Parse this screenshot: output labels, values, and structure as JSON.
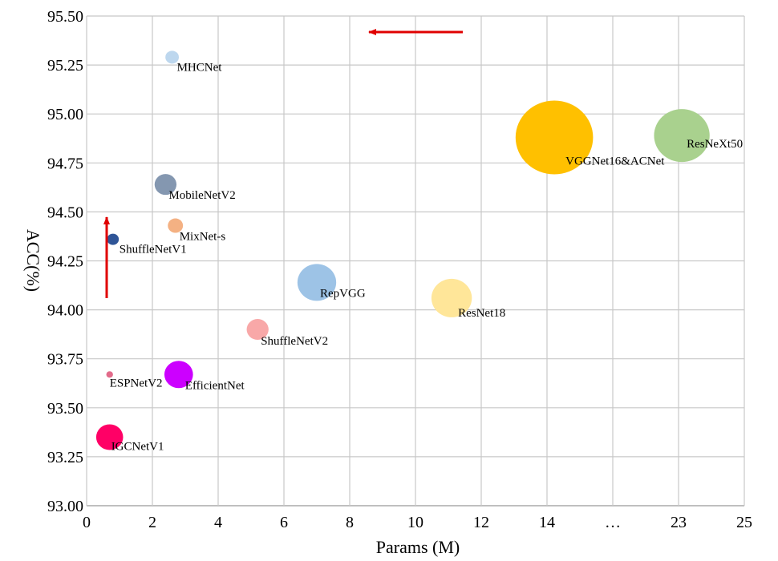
{
  "chart_data": {
    "type": "scatter",
    "subtype": "bubble",
    "xlabel": "Params (M)",
    "ylabel": "ACC(%)",
    "x_ticks": [
      "0",
      "2",
      "4",
      "6",
      "8",
      "10",
      "12",
      "14",
      "…",
      "23",
      "25"
    ],
    "y_ticks": [
      "93.00",
      "93.25",
      "93.50",
      "93.75",
      "94.00",
      "94.25",
      "94.50",
      "94.75",
      "95.00",
      "95.25",
      "95.50"
    ],
    "ylim": [
      93.0,
      95.5
    ],
    "grid": true,
    "note_x_axis": "broken axis: after 14 the axis jumps via … to 23 and 25",
    "points": [
      {
        "name": "MHCNet",
        "x": 2.6,
        "y": 95.29,
        "color": "#bdd7ee"
      },
      {
        "name": "VGGNet16&ACNet",
        "x": 14.5,
        "y": 94.88,
        "color": "#ffc000"
      },
      {
        "name": "ResNeXt50",
        "x": 23.1,
        "y": 94.89,
        "color": "#a9d18e"
      },
      {
        "name": "MobileNetV2",
        "x": 2.4,
        "y": 94.64,
        "color": "#8497b0"
      },
      {
        "name": "MixNet-s",
        "x": 2.7,
        "y": 94.43,
        "color": "#f4b183"
      },
      {
        "name": "ShuffleNetV1",
        "x": 0.8,
        "y": 94.36,
        "color": "#2f5597"
      },
      {
        "name": "RepVGG",
        "x": 7.0,
        "y": 94.14,
        "color": "#9dc3e6"
      },
      {
        "name": "ResNet18",
        "x": 11.1,
        "y": 94.06,
        "color": "#ffe699"
      },
      {
        "name": "ShuffleNetV2",
        "x": 5.2,
        "y": 93.9,
        "color": "#f8a8a8"
      },
      {
        "name": "ESPNetV2",
        "x": 0.7,
        "y": 93.67,
        "color": "#e26b8a"
      },
      {
        "name": "EfficientNet",
        "x": 2.8,
        "y": 93.67,
        "color": "#cc00ff"
      },
      {
        "name": "IGCNetV1",
        "x": 0.7,
        "y": 93.35,
        "color": "#ff0066"
      }
    ],
    "annotations": [
      {
        "type": "arrow",
        "direction": "left",
        "color": "#e00000"
      },
      {
        "type": "arrow",
        "direction": "up",
        "color": "#e00000"
      }
    ]
  }
}
